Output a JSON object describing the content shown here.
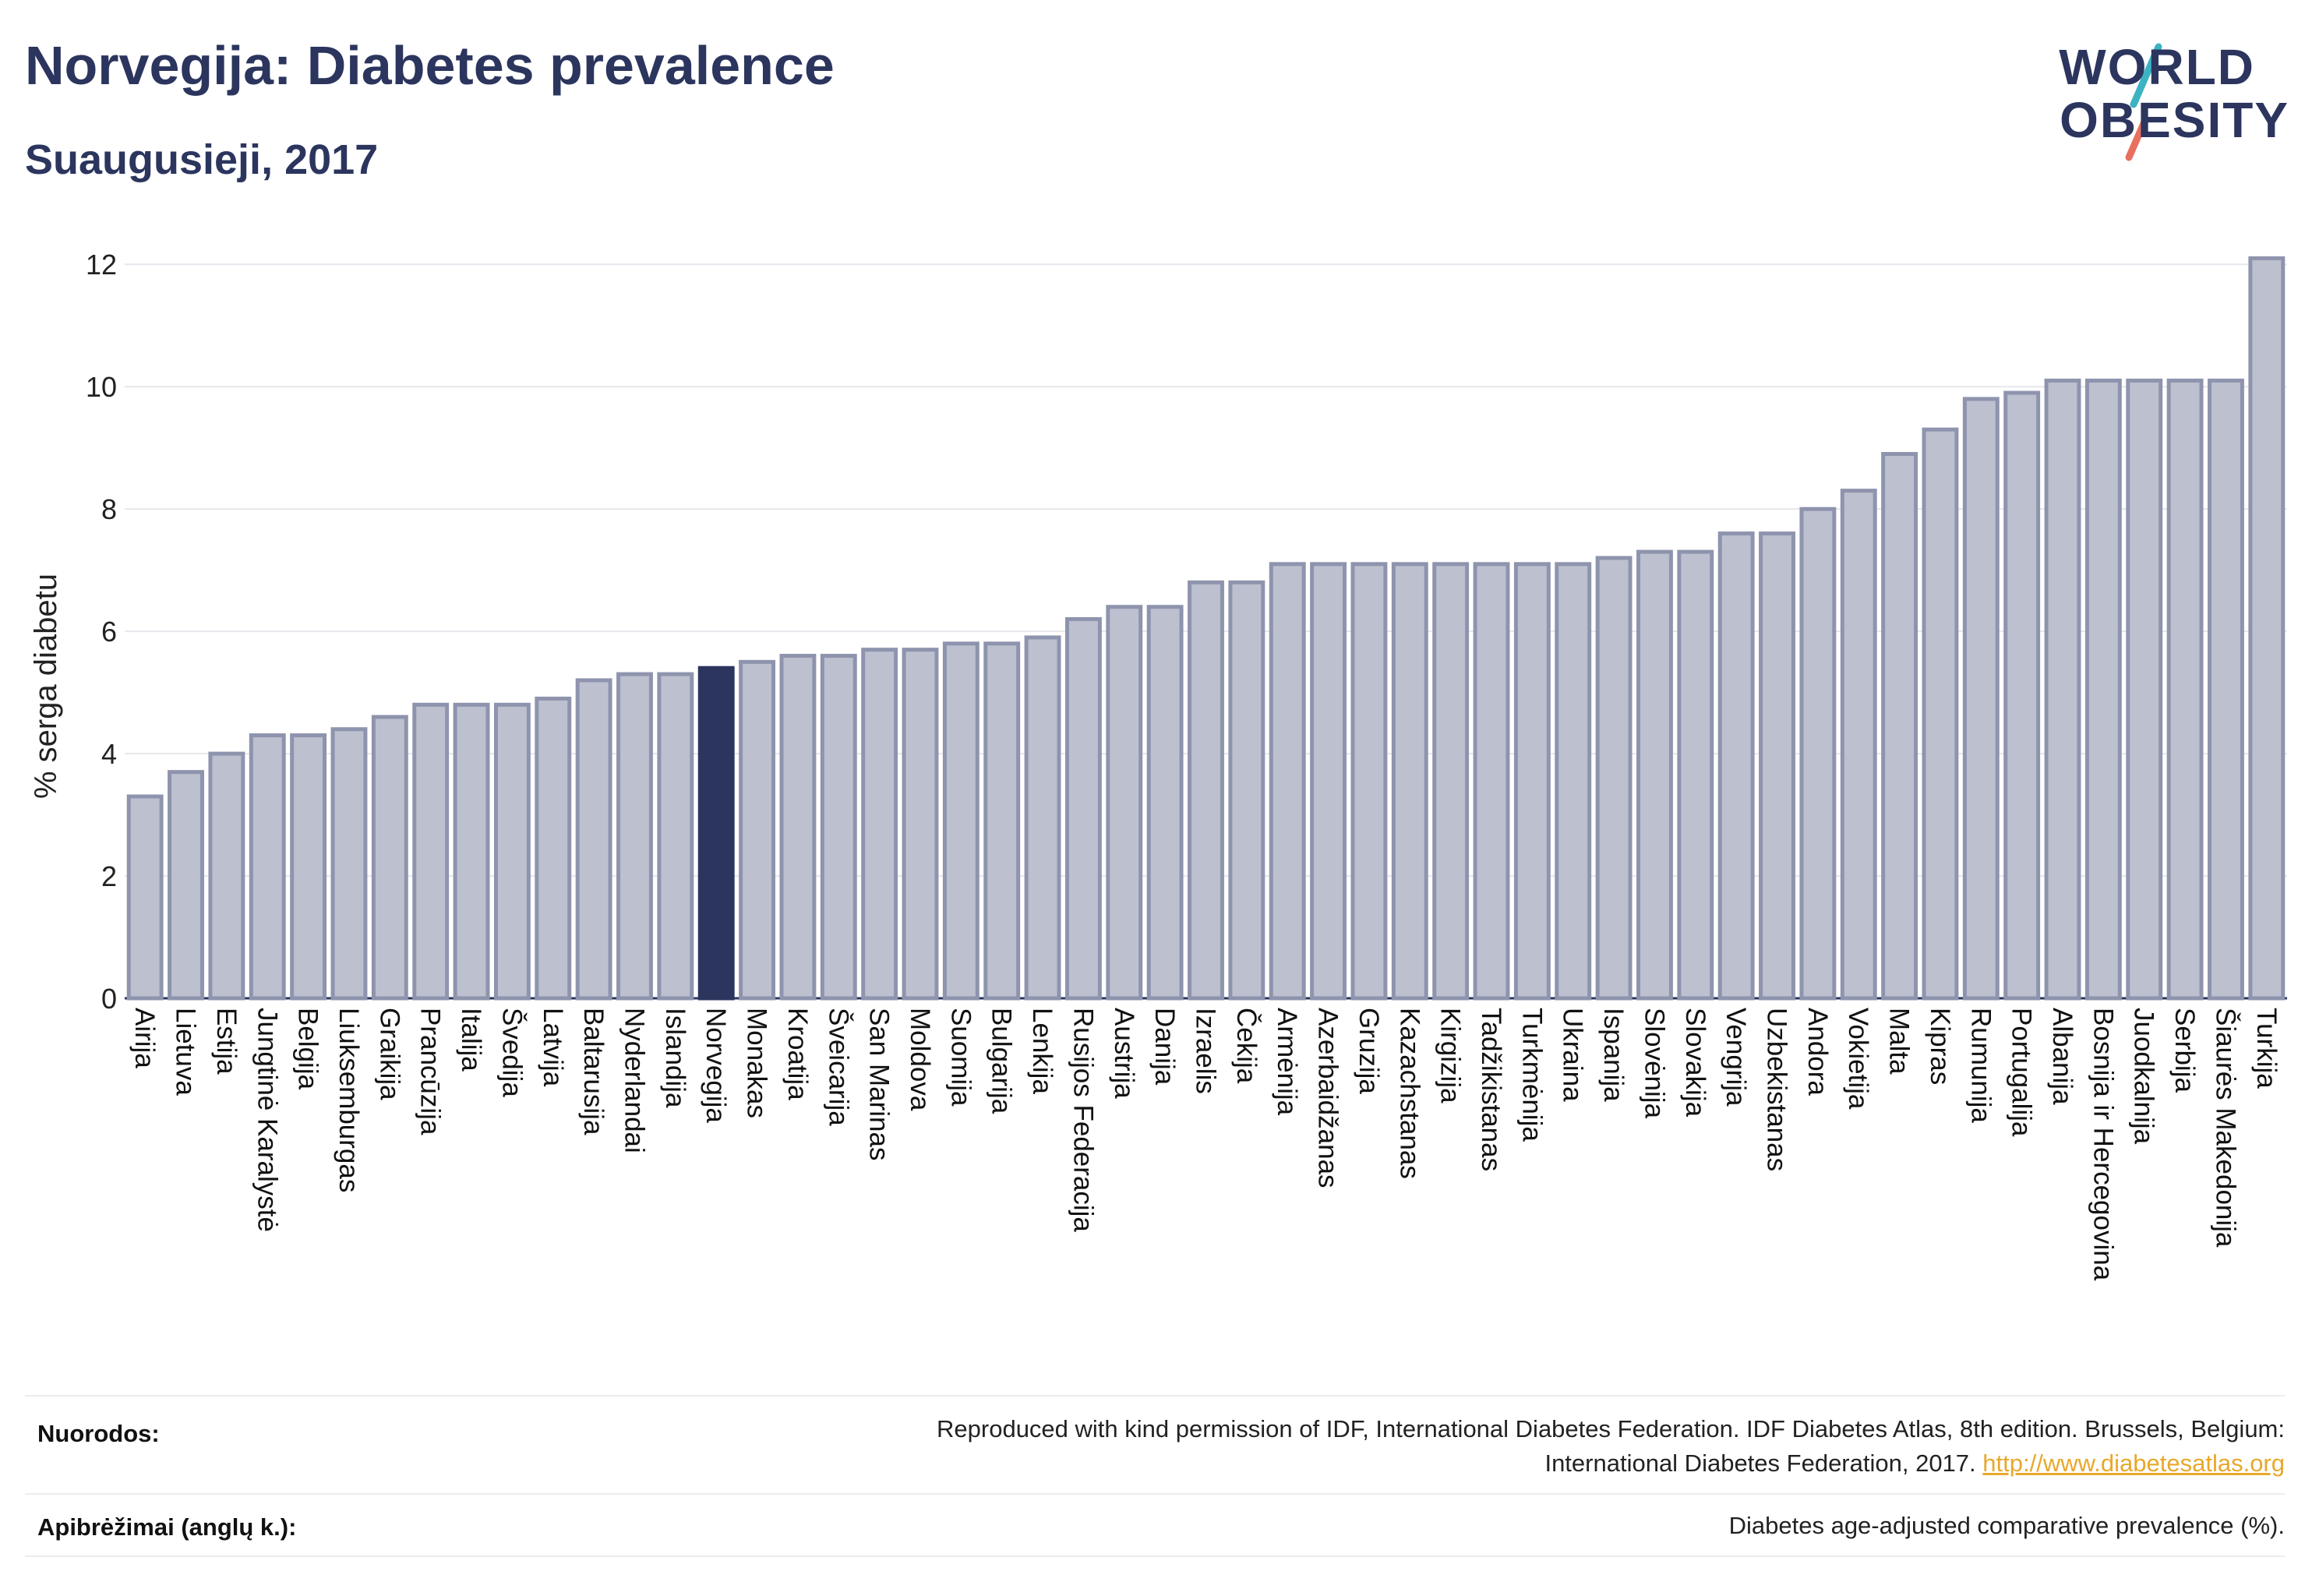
{
  "header": {
    "title": "Norvegija: Diabetes prevalence",
    "subtitle": "Suaugusieji, 2017"
  },
  "logo": {
    "line1": "WORLD",
    "line2": "OBESITY",
    "slash_colors": [
      "#3bb3c3",
      "#e8705e"
    ]
  },
  "chart_data": {
    "type": "bar",
    "title": "Norvegija: Diabetes prevalence",
    "subtitle": "Suaugusieji, 2017",
    "ylabel": "% serga diabetu",
    "xlabel": "",
    "ylim": [
      0,
      12.5
    ],
    "yticks": [
      0,
      2,
      4,
      6,
      8,
      10,
      12
    ],
    "grid": true,
    "highlight": "Norvegija",
    "colors": {
      "bar": "#bcc0cf",
      "bar_border": "#8e94ad",
      "highlight": "#2b355e"
    },
    "categories": [
      "Airija",
      "Lietuva",
      "Estija",
      "Jungtinė Karalystė",
      "Belgija",
      "Liuksemburgas",
      "Graikija",
      "Prancūzija",
      "Italija",
      "Švedija",
      "Latvija",
      "Baltarusija",
      "Nyderlandai",
      "Islandija",
      "Norvegija",
      "Monakas",
      "Kroatija",
      "Šveicarija",
      "San Marinas",
      "Moldova",
      "Suomija",
      "Bulgarija",
      "Lenkija",
      "Rusijos Federacija",
      "Austrija",
      "Danija",
      "Izraelis",
      "Čekija",
      "Armėnija",
      "Azerbaidžanas",
      "Gruzija",
      "Kazachstanas",
      "Kirgizija",
      "Tadžikistanas",
      "Turkmėnija",
      "Ukraina",
      "Ispanija",
      "Slovėnija",
      "Slovakija",
      "Vengrija",
      "Uzbekistanas",
      "Andora",
      "Vokietija",
      "Malta",
      "Kipras",
      "Rumunija",
      "Portugalija",
      "Albanija",
      "Bosnija ir Hercegovina",
      "Juodkalnija",
      "Serbija",
      "Šiaurės Makedonija",
      "Turkija"
    ],
    "values": [
      3.3,
      3.7,
      4.0,
      4.3,
      4.3,
      4.4,
      4.6,
      4.8,
      4.8,
      4.8,
      4.9,
      5.2,
      5.3,
      5.3,
      5.4,
      5.5,
      5.6,
      5.6,
      5.7,
      5.7,
      5.8,
      5.8,
      5.9,
      6.2,
      6.4,
      6.4,
      6.8,
      6.8,
      7.1,
      7.1,
      7.1,
      7.1,
      7.1,
      7.1,
      7.1,
      7.1,
      7.2,
      7.3,
      7.3,
      7.6,
      7.6,
      8.0,
      8.3,
      8.9,
      9.3,
      9.8,
      9.9,
      10.1,
      10.1,
      10.1,
      10.1,
      10.1,
      12.1
    ]
  },
  "footer": {
    "sources_label": "Nuorodos:",
    "sources_line1": "Reproduced with kind permission of IDF, International Diabetes Federation. IDF Diabetes Atlas, 8th edition. Brussels, Belgium:",
    "sources_line2": "International Diabetes Federation, 2017.",
    "sources_link": "http://www.diabetesatlas.org",
    "definitions_label": "Apibrėžimai (anglų k.):",
    "definitions_text": "Diabetes age-adjusted comparative prevalence (%)."
  }
}
